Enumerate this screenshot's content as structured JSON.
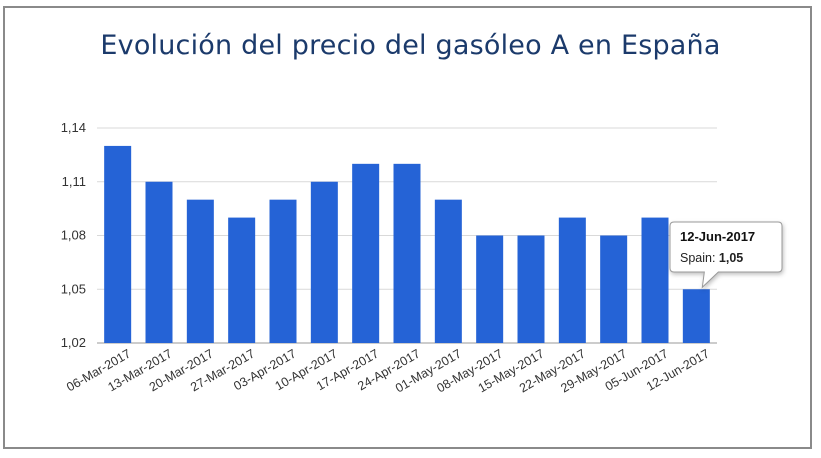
{
  "chart_data": {
    "type": "bar",
    "title": "Evolución del precio del gasóleo A en España",
    "xlabel": "",
    "ylabel": "",
    "ylim": [
      1.02,
      1.14
    ],
    "yticks": [
      "1,02",
      "1,05",
      "1,08",
      "1,11",
      "1,14"
    ],
    "grid": true,
    "categories": [
      "06-Mar-2017",
      "13-Mar-2017",
      "20-Mar-2017",
      "27-Mar-2017",
      "03-Apr-2017",
      "10-Apr-2017",
      "17-Apr-2017",
      "24-Apr-2017",
      "01-May-2017",
      "08-May-2017",
      "15-May-2017",
      "22-May-2017",
      "29-May-2017",
      "05-Jun-2017",
      "12-Jun-2017"
    ],
    "series": [
      {
        "name": "Spain",
        "color": "#2563d6",
        "values": [
          1.13,
          1.11,
          1.1,
          1.09,
          1.1,
          1.11,
          1.12,
          1.12,
          1.1,
          1.08,
          1.08,
          1.09,
          1.08,
          1.09,
          1.05
        ]
      }
    ],
    "tooltip": {
      "category_index": 14,
      "title": "12-Jun-2017",
      "series_label": "Spain:",
      "value_text": "1,05"
    }
  }
}
